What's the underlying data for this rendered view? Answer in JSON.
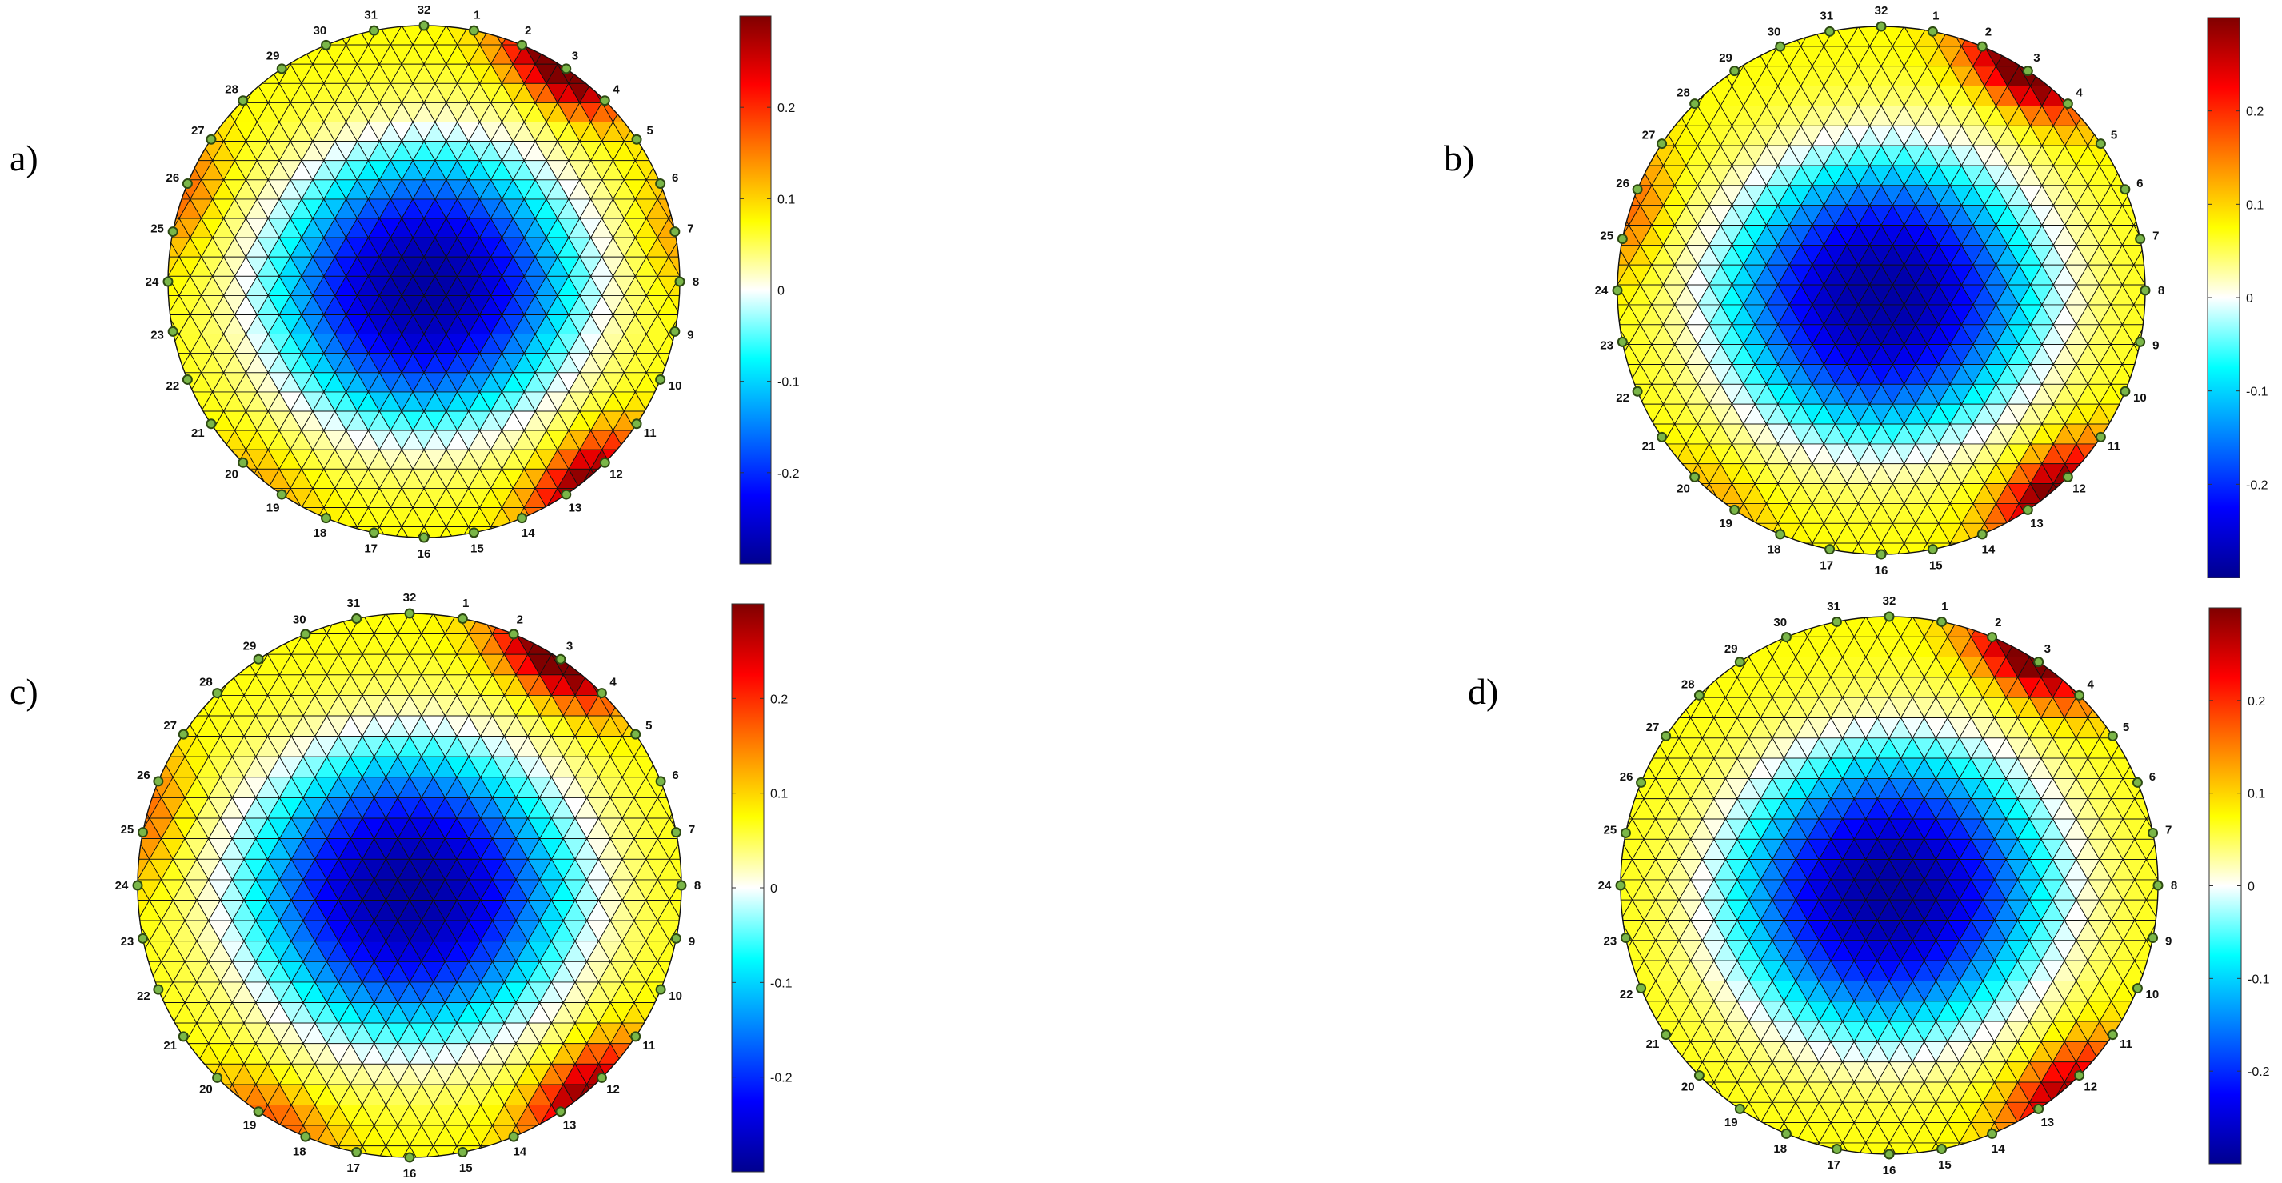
{
  "figure": {
    "panels": [
      {
        "label": "a)",
        "tilt": -8,
        "hot_spots": [
          {
            "angle": 33,
            "value": 0.29
          },
          {
            "angle": 141,
            "value": 0.23
          },
          {
            "angle": 290,
            "value": 0.09
          },
          {
            "angle": 78,
            "value": 0.06
          },
          {
            "angle": 218,
            "value": 0.05
          }
        ]
      },
      {
        "label": "b)",
        "tilt": -6,
        "hot_spots": [
          {
            "angle": 33,
            "value": 0.28
          },
          {
            "angle": 140,
            "value": 0.24
          },
          {
            "angle": 288,
            "value": 0.09
          },
          {
            "angle": 218,
            "value": 0.05
          }
        ]
      },
      {
        "label": "c)",
        "tilt": 0,
        "hot_spots": [
          {
            "angle": 33,
            "value": 0.28
          },
          {
            "angle": 140,
            "value": 0.22
          },
          {
            "angle": 285,
            "value": 0.09
          },
          {
            "angle": 210,
            "value": 0.1
          }
        ]
      },
      {
        "label": "d)",
        "tilt": -10,
        "hot_spots": [
          {
            "angle": 32,
            "value": 0.26
          },
          {
            "angle": 140,
            "value": 0.2
          }
        ]
      }
    ],
    "colorbar": {
      "min": -0.3,
      "max": 0.3,
      "ticks": [
        {
          "value": 0.2,
          "label": "0.2"
        },
        {
          "value": 0.1,
          "label": "0.1"
        },
        {
          "value": 0,
          "label": "0"
        },
        {
          "value": -0.1,
          "label": "-0.1"
        },
        {
          "value": -0.2,
          "label": "-0.2"
        }
      ]
    },
    "electrodes": [
      "1",
      "2",
      "3",
      "4",
      "5",
      "6",
      "7",
      "8",
      "9",
      "10",
      "11",
      "12",
      "13",
      "14",
      "15",
      "16",
      "17",
      "18",
      "19",
      "20",
      "21",
      "22",
      "23",
      "24",
      "25",
      "26",
      "27",
      "28",
      "29",
      "30",
      "31",
      "32"
    ],
    "colors": {
      "mesh_line": "#111111",
      "electrode_fill": "#7ab648",
      "electrode_stroke": "#2d4a12",
      "background": "#ffffff"
    }
  },
  "chart_data": [
    {
      "type": "heatmap",
      "title": "a)",
      "colorbar_range": [
        -0.3,
        0.3
      ],
      "colorbar_ticks": [
        0.2,
        0.1,
        0,
        -0.1,
        -0.2
      ],
      "electrodes": 32,
      "approx_values": {
        "center_min": -0.27,
        "electrode_29_28": 0.29,
        "electrode_12_13": 0.23,
        "electrode_25_26": 0.09,
        "electrode_7_8": 0.06,
        "ring": 0.05
      }
    },
    {
      "type": "heatmap",
      "title": "b)",
      "colorbar_range": [
        -0.3,
        0.3
      ],
      "colorbar_ticks": [
        0.2,
        0.1,
        0,
        -0.1,
        -0.2
      ],
      "electrodes": 32,
      "approx_values": {
        "center_min": -0.27,
        "electrode_29_28": 0.28,
        "electrode_12_13": 0.24,
        "electrode_25_26": 0.09,
        "ring": 0.05
      }
    },
    {
      "type": "heatmap",
      "title": "c)",
      "colorbar_range": [
        -0.3,
        0.3
      ],
      "colorbar_ticks": [
        0.2,
        0.1,
        0,
        -0.1,
        -0.2
      ],
      "electrodes": 32,
      "approx_values": {
        "center_min": -0.24,
        "electrode_29_28": 0.28,
        "electrode_12_13": 0.22,
        "electrode_25_26": 0.09,
        "electrode_20_21": 0.1,
        "ring": 0.05
      }
    },
    {
      "type": "heatmap",
      "title": "d)",
      "colorbar_range": [
        -0.3,
        0.3
      ],
      "colorbar_ticks": [
        0.2,
        0.1,
        0,
        -0.1,
        -0.2
      ],
      "electrodes": 32,
      "approx_values": {
        "center_min": -0.22,
        "electrode_29_28": 0.26,
        "electrode_12_13": 0.2,
        "ring": 0.05
      }
    }
  ]
}
